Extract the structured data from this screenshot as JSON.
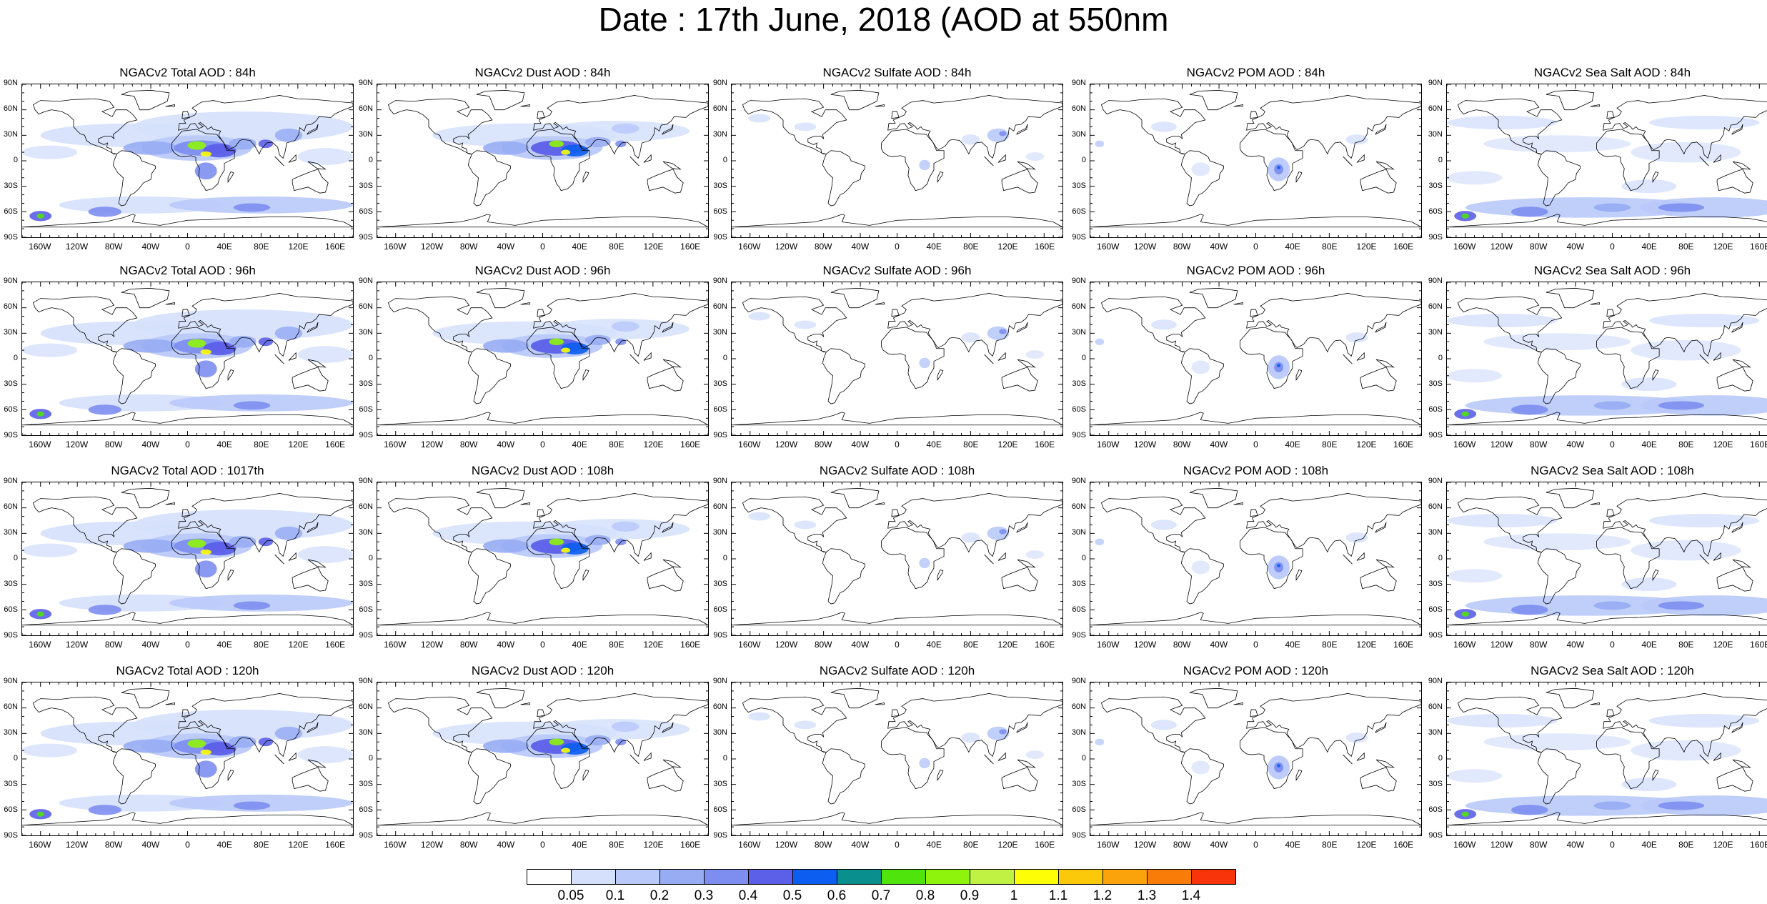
{
  "title": "Date : 17th June, 2018 (AOD at 550nm",
  "lat_labels": [
    "90N",
    "60N",
    "30N",
    "0",
    "30S",
    "60S",
    "90S"
  ],
  "lon_labels": [
    "160W",
    "120W",
    "80W",
    "40W",
    "0",
    "40E",
    "80E",
    "120E",
    "160E"
  ],
  "columns": [
    "total",
    "dust",
    "sulfate",
    "pom",
    "seasalt"
  ],
  "panels": [
    [
      {
        "title": "NGACv2 Total AOD : 84h",
        "species": "total"
      },
      {
        "title": "NGACv2 Dust AOD : 84h",
        "species": "dust"
      },
      {
        "title": "NGACv2 Sulfate AOD : 84h",
        "species": "sulfate"
      },
      {
        "title": "NGACv2 POM AOD : 84h",
        "species": "pom"
      },
      {
        "title": "NGACv2 Sea Salt AOD : 84h",
        "species": "seasalt"
      }
    ],
    [
      {
        "title": "NGACv2 Total AOD : 96h",
        "species": "total"
      },
      {
        "title": "NGACv2 Dust AOD : 96h",
        "species": "dust"
      },
      {
        "title": "NGACv2 Sulfate AOD : 96h",
        "species": "sulfate"
      },
      {
        "title": "NGACv2 POM AOD : 96h",
        "species": "pom"
      },
      {
        "title": "NGACv2 Sea Salt AOD : 96h",
        "species": "seasalt"
      }
    ],
    [
      {
        "title": "NGACv2 Total AOD : 1017th",
        "species": "total"
      },
      {
        "title": "NGACv2 Dust AOD : 108h",
        "species": "dust"
      },
      {
        "title": "NGACv2 Sulfate AOD : 108h",
        "species": "sulfate"
      },
      {
        "title": "NGACv2 POM AOD : 108h",
        "species": "pom"
      },
      {
        "title": "NGACv2 Sea Salt AOD : 108h",
        "species": "seasalt"
      }
    ],
    [
      {
        "title": "NGACv2 Total AOD : 120h",
        "species": "total"
      },
      {
        "title": "NGACv2 Dust AOD : 120h",
        "species": "dust"
      },
      {
        "title": "NGACv2 Sulfate AOD : 120h",
        "species": "sulfate"
      },
      {
        "title": "NGACv2 POM AOD : 120h",
        "species": "pom"
      },
      {
        "title": "NGACv2 Sea Salt  AOD : 120h",
        "species": "seasalt"
      }
    ]
  ],
  "colorbar": {
    "colors": [
      "#ffffff",
      "#d5e0fc",
      "#b9c9fa",
      "#97acf3",
      "#7d8ef0",
      "#5c5fe8",
      "#0c5ef1",
      "#0a8f8f",
      "#4fe40c",
      "#8ff40c",
      "#c0f244",
      "#fefe06",
      "#fcc80a",
      "#fba30a",
      "#f97c08",
      "#f7340a"
    ],
    "labels": [
      "0.05",
      "0.1",
      "0.2",
      "0.3",
      "0.4",
      "0.5",
      "0.6",
      "0.7",
      "0.8",
      "0.9",
      "1",
      "1.1",
      "1.2",
      "1.3",
      "1.4"
    ]
  }
}
